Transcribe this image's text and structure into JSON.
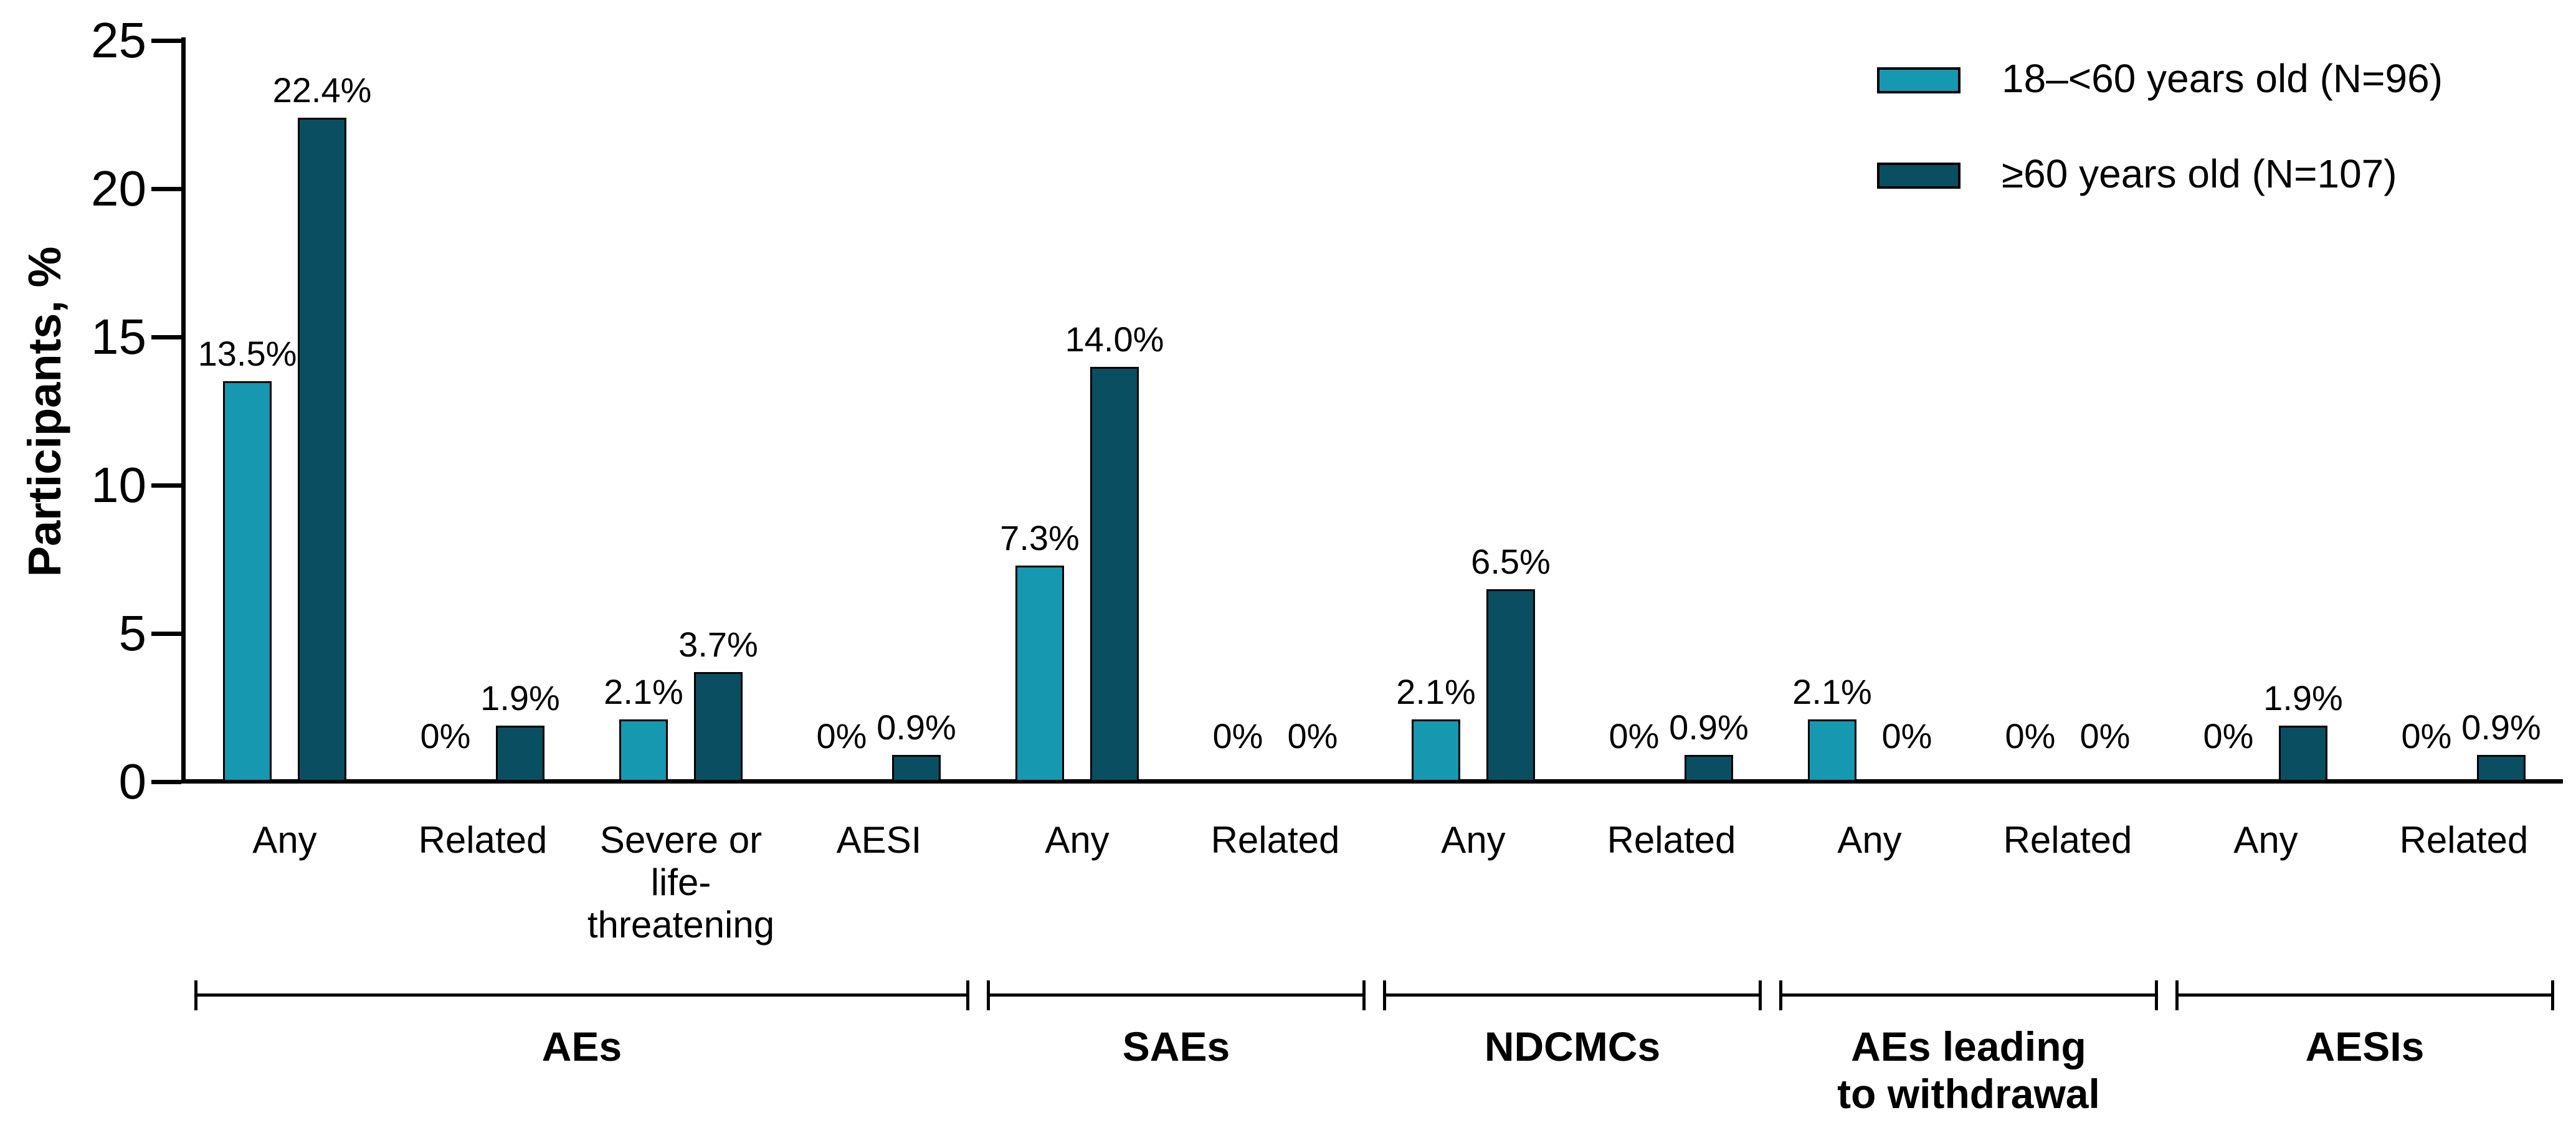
{
  "chart_data": {
    "type": "bar",
    "title": "",
    "ylabel": "Participants, %",
    "ylim": [
      0,
      25
    ],
    "yticks": [
      0,
      5,
      10,
      15,
      20,
      25
    ],
    "ytick_labels": [
      "0",
      "5",
      "10",
      "15",
      "20",
      "25"
    ],
    "grid": false,
    "legend_position": "top-right",
    "categories": [
      "Any",
      "Related",
      "Severe or\nlife-\nthreatening",
      "AESI",
      "Any",
      "Related",
      "Any",
      "Related",
      "Any",
      "Related",
      "Any",
      "Related"
    ],
    "groups": [
      {
        "label": "AEs",
        "span": 4
      },
      {
        "label": "SAEs",
        "span": 2
      },
      {
        "label": "NDCMCs",
        "span": 2
      },
      {
        "label": "AEs leading\nto withdrawal",
        "span": 2
      },
      {
        "label": "AESIs",
        "span": 2
      }
    ],
    "series": [
      {
        "name": "18–<60 years old (N=96)",
        "color": "#1598B0",
        "values": [
          13.5,
          0,
          2.1,
          0,
          7.3,
          0,
          2.1,
          0,
          2.1,
          0,
          0,
          0
        ],
        "labels": [
          "13.5%",
          "0%",
          "2.1%",
          "0%",
          "7.3%",
          "0%",
          "2.1%",
          "0%",
          "2.1%",
          "0%",
          "0%",
          "0%"
        ]
      },
      {
        "name": "≥60 years old (N=107)",
        "color": "#094F61",
        "values": [
          22.4,
          1.9,
          3.7,
          0.9,
          14.0,
          0,
          6.5,
          0.9,
          0,
          0,
          1.9,
          0.9
        ],
        "labels": [
          "22.4%",
          "1.9%",
          "3.7%",
          "0.9%",
          "14.0%",
          "0%",
          "6.5%",
          "0.9%",
          "0%",
          "0%",
          "1.9%",
          "0.9%"
        ]
      }
    ],
    "axis_color": "#000000",
    "bar_outline_color": "#000000"
  }
}
